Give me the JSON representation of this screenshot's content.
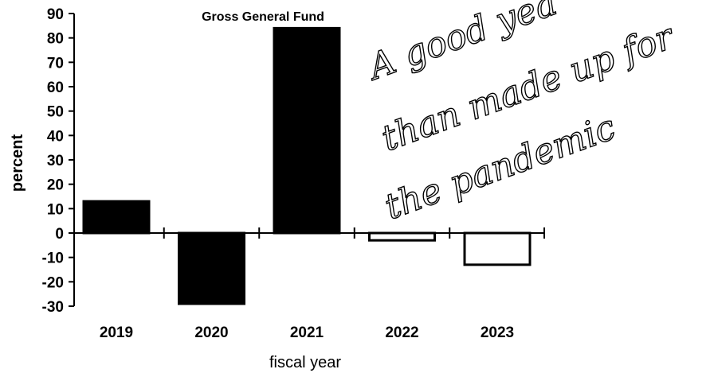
{
  "chart_data": {
    "type": "bar",
    "title": "Gross General Fund",
    "xlabel": "fiscal year",
    "ylabel": "percent",
    "categories": [
      "2019",
      "2020",
      "2021",
      "2022",
      "2023"
    ],
    "values": [
      13,
      -29,
      84,
      -3,
      -13
    ],
    "yticks": [
      "90",
      "80",
      "70",
      "60",
      "50",
      "40",
      "30",
      "20",
      "10",
      "0",
      "-10",
      "-20",
      "-30"
    ],
    "ylim": [
      -30,
      90
    ],
    "grid": false,
    "bar_fill": [
      "#000000",
      "#000000",
      "#000000",
      "#ffffff",
      "#ffffff"
    ],
    "annotation": {
      "lines": [
        "A good yea",
        "than made up for",
        "the pandemic"
      ]
    }
  }
}
